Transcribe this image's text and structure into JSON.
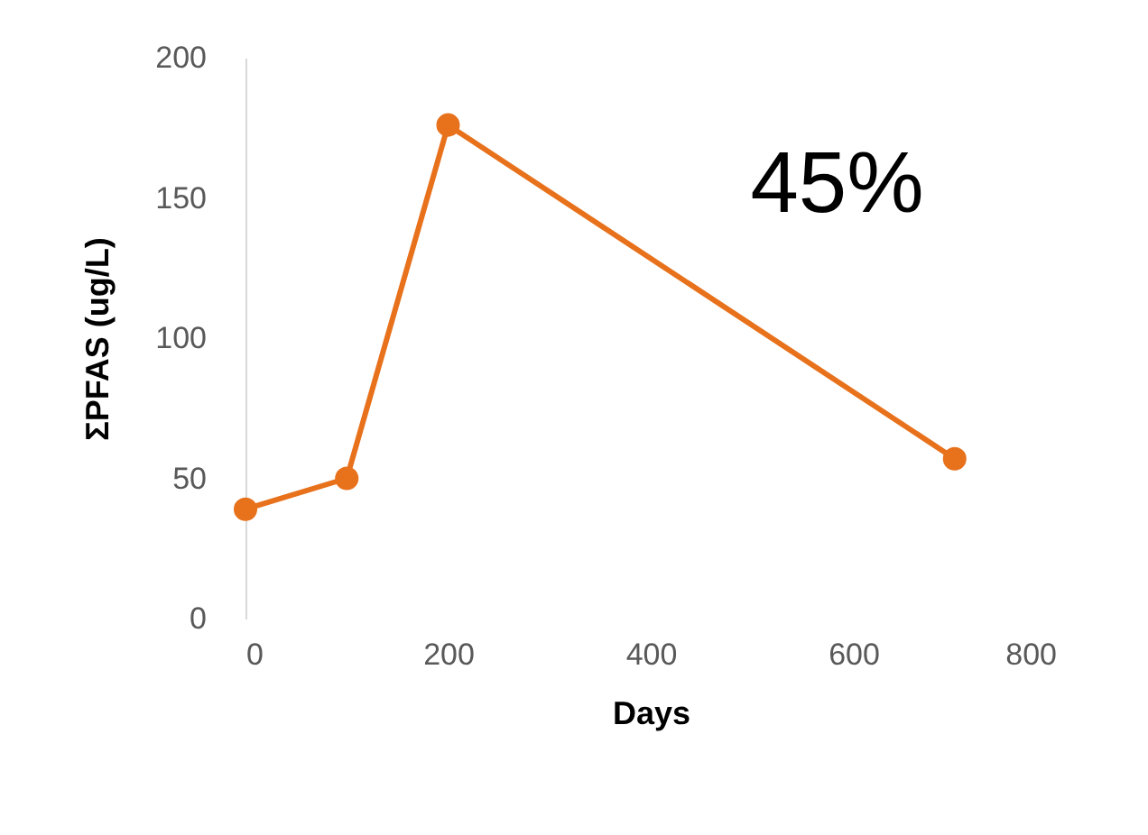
{
  "chart_data": {
    "type": "line",
    "xlabel": "Days",
    "ylabel": "ΣPFAS (ug/L)",
    "x": [
      0,
      100,
      200,
      700
    ],
    "series": [
      {
        "color": "#e8711c",
        "values": [
          39,
          50,
          176,
          57
        ]
      }
    ],
    "xlim": [
      0,
      800
    ],
    "xticks": [
      0,
      200,
      400,
      600,
      800
    ],
    "ylim": [
      0,
      200
    ],
    "yticks": [
      0,
      50,
      100,
      150,
      200
    ],
    "marker": "circle",
    "grid": false,
    "annotations": [
      "45%"
    ]
  }
}
